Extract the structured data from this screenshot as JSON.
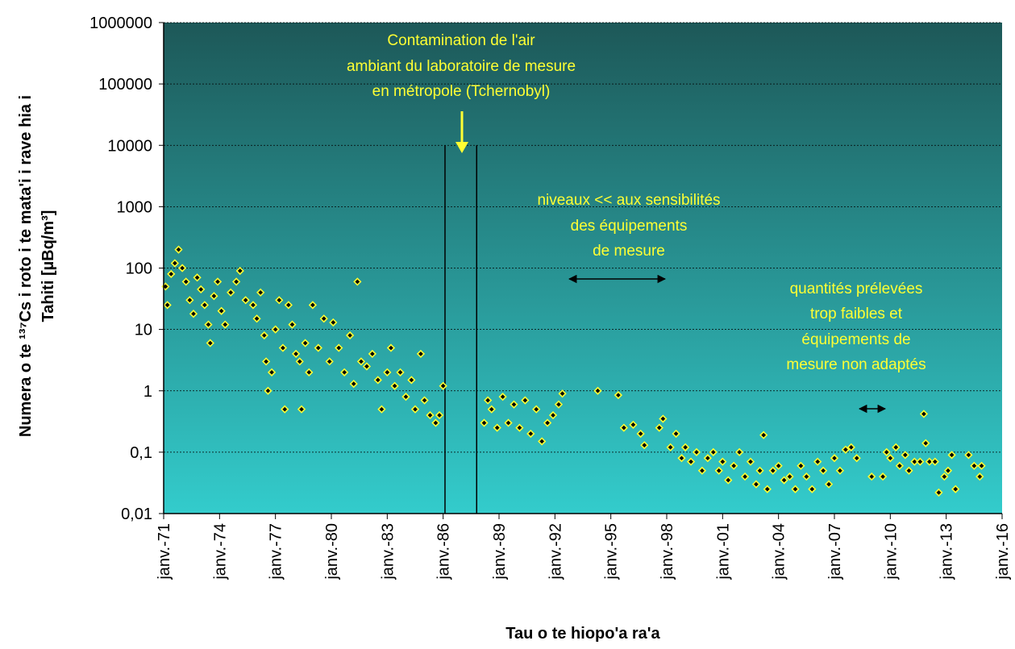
{
  "chart_data": {
    "type": "scatter",
    "ylabel": [
      "Numera o te ¹³⁷Cs i roto i te mata'i i rave hia i",
      "Tahiti [µBq/m³]"
    ],
    "xlabel": "Tau o te hiopo'a ra'a",
    "log_y": true,
    "grid": true,
    "ylim": [
      0.01,
      1000000
    ],
    "yticks": [
      {
        "value": 0.01,
        "label": "0,01"
      },
      {
        "value": 0.1,
        "label": "0,1"
      },
      1,
      10,
      100,
      1000,
      10000,
      100000,
      1000000
    ],
    "xlim": [
      1971,
      2016
    ],
    "xticks": [
      {
        "value": 1971,
        "label": "janv.-71"
      },
      {
        "value": 1974,
        "label": "janv.-74"
      },
      {
        "value": 1977,
        "label": "janv.-77"
      },
      {
        "value": 1980,
        "label": "janv.-80"
      },
      {
        "value": 1983,
        "label": "janv.-83"
      },
      {
        "value": 1986,
        "label": "janv.-86"
      },
      {
        "value": 1989,
        "label": "janv.-89"
      },
      {
        "value": 1992,
        "label": "janv.-92"
      },
      {
        "value": 1995,
        "label": "janv.-95"
      },
      {
        "value": 1998,
        "label": "janv.-98"
      },
      {
        "value": 2001,
        "label": "janv.-01"
      },
      {
        "value": 2004,
        "label": "janv.-04"
      },
      {
        "value": 2007,
        "label": "janv.-07"
      },
      {
        "value": 2010,
        "label": "janv.-10"
      },
      {
        "value": 2013,
        "label": "janv.-13"
      },
      {
        "value": 2016,
        "label": "janv.-16"
      }
    ],
    "vlines": [
      {
        "x": 1986.1,
        "top": 10000
      },
      {
        "x": 1987.8,
        "top": 10000
      }
    ],
    "annotations": [
      {
        "lines": [
          "Contamination de l'air",
          "ambiant du laboratoire de mesure",
          "en métropole (Tchernobyl)"
        ]
      },
      {
        "lines": [
          "niveaux << aux sensibilités",
          "des équipements",
          "de mesure"
        ]
      },
      {
        "lines": [
          "quantités prélevées",
          "trop faibles et",
          "équipements de",
          "mesure non adaptés"
        ]
      }
    ],
    "series": [
      {
        "color": "#000000",
        "x": [
          1971.1,
          1971.2,
          1971.4,
          1971.6,
          1971.8,
          1972.0,
          1972.2,
          1972.4,
          1972.6,
          1972.8,
          1973.0,
          1973.2,
          1973.4,
          1973.5,
          1973.7,
          1973.9,
          1974.1,
          1974.3,
          1974.6,
          1974.9,
          1975.1,
          1975.4,
          1975.8,
          1976.0,
          1976.2,
          1976.4,
          1976.5,
          1976.6,
          1976.8,
          1977.0,
          1977.2,
          1977.4,
          1977.5,
          1977.7,
          1977.9,
          1978.1,
          1978.3,
          1978.4,
          1978.6,
          1978.8,
          1979.0,
          1979.3,
          1979.6,
          1979.9,
          1980.1,
          1980.4,
          1980.7,
          1981.0,
          1981.2,
          1981.4,
          1981.6,
          1981.9,
          1982.2,
          1982.5,
          1982.7,
          1983.0,
          1983.2,
          1983.4,
          1983.7,
          1984.0,
          1984.3,
          1984.5,
          1984.8,
          1985.0,
          1985.3,
          1985.6,
          1985.8,
          1986.0,
          1988.2,
          1988.4,
          1988.6,
          1988.9,
          1989.2,
          1989.5,
          1989.8,
          1990.1,
          1990.4,
          1990.7,
          1991.0,
          1991.3,
          1991.6,
          1991.9,
          1992.2,
          1992.4,
          1994.3,
          1995.4,
          1995.7,
          1996.2,
          1996.6,
          1996.8,
          1997.6,
          1997.8,
          1998.2,
          1998.5,
          1998.8,
          1999.0,
          1999.3,
          1999.6,
          1999.9,
          2000.2,
          2000.5,
          2000.8,
          2001.0,
          2001.3,
          2001.6,
          2001.9,
          2002.2,
          2002.5,
          2002.8,
          2003.0,
          2003.2,
          2003.4,
          2003.7,
          2004.0,
          2004.3,
          2004.6,
          2004.9,
          2005.2,
          2005.5,
          2005.8,
          2006.1,
          2006.4,
          2006.7,
          2007.0,
          2007.3,
          2007.6,
          2007.9,
          2008.2,
          2009.0,
          2009.6,
          2009.8,
          2010.0,
          2010.3,
          2010.5,
          2010.8,
          2011.0,
          2011.3,
          2011.6,
          2011.8,
          2011.9,
          2012.1,
          2012.4,
          2012.6,
          2012.9,
          2013.1,
          2013.3,
          2013.5,
          2014.2,
          2014.5,
          2014.8,
          2014.9
        ],
        "values": [
          50,
          25,
          80,
          120,
          200,
          100,
          60,
          30,
          18,
          70,
          45,
          25,
          12,
          6,
          35,
          60,
          20,
          12,
          40,
          60,
          90,
          30,
          25,
          15,
          40,
          8,
          3,
          1,
          2,
          10,
          30,
          5,
          0.5,
          25,
          12,
          4,
          3,
          0.5,
          6,
          2,
          25,
          5,
          15,
          3,
          13,
          5,
          2,
          8,
          1.3,
          60,
          3,
          2.5,
          4,
          1.5,
          0.5,
          2,
          5,
          1.2,
          2,
          0.8,
          1.5,
          0.5,
          4,
          0.7,
          0.4,
          0.3,
          0.4,
          1.2,
          0.3,
          0.7,
          0.5,
          0.25,
          0.8,
          0.3,
          0.6,
          0.25,
          0.7,
          0.2,
          0.5,
          0.15,
          0.3,
          0.4,
          0.6,
          0.9,
          1,
          0.85,
          0.25,
          0.28,
          0.2,
          0.13,
          0.25,
          0.35,
          0.12,
          0.2,
          0.08,
          0.12,
          0.07,
          0.1,
          0.05,
          0.08,
          0.1,
          0.05,
          0.07,
          0.035,
          0.06,
          0.1,
          0.04,
          0.07,
          0.03,
          0.05,
          0.19,
          0.025,
          0.05,
          0.06,
          0.035,
          0.04,
          0.025,
          0.06,
          0.04,
          0.025,
          0.07,
          0.05,
          0.03,
          0.08,
          0.05,
          0.11,
          0.12,
          0.08,
          0.04,
          0.04,
          0.1,
          0.08,
          0.12,
          0.06,
          0.09,
          0.05,
          0.07,
          0.07,
          0.42,
          0.14,
          0.07,
          0.07,
          0.022,
          0.04,
          0.05,
          0.09,
          0.025,
          0.09,
          0.06,
          0.04,
          0.06
        ]
      }
    ]
  }
}
